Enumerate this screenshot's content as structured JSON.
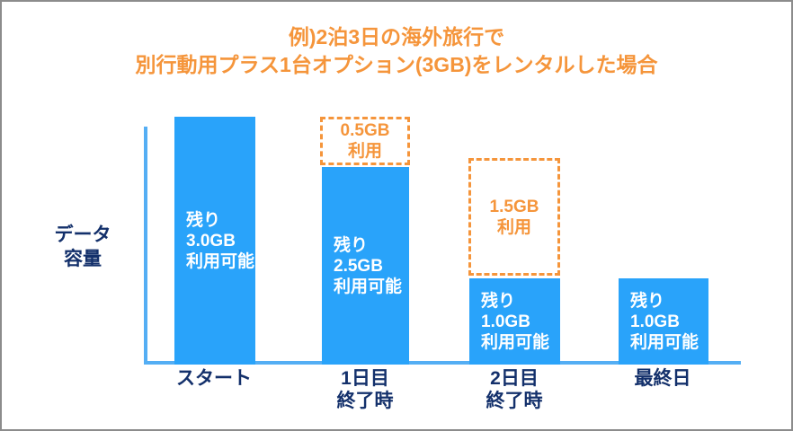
{
  "title": {
    "line1": "例)2泊3日の海外旅行で",
    "line2": "別行動用プラス1台オプション(3GB)をレンタルした場合"
  },
  "y_axis": {
    "line1": "データ",
    "line2": "容量"
  },
  "colors": {
    "bar_blue": "#29A3FA",
    "axis_blue": "#54AEF4",
    "accent_orange": "#F5953B",
    "navy_text": "#13306B",
    "bar_text_white": "#FFFFFF"
  },
  "bars": [
    {
      "axis_label": {
        "line1": "スタート",
        "line2": ""
      },
      "lines": [
        "残り",
        "3.0GB",
        "利用可能"
      ],
      "used": null
    },
    {
      "axis_label": {
        "line1": "1日目",
        "line2": "終了時"
      },
      "lines": [
        "残り",
        "2.5GB",
        "利用可能"
      ],
      "used": {
        "amount": "0.5GB",
        "word": "利用"
      }
    },
    {
      "axis_label": {
        "line1": "2日目",
        "line2": "終了時"
      },
      "lines": [
        "残り",
        "1.0GB",
        "利用可能"
      ],
      "used": {
        "amount": "1.5GB",
        "word": "利用"
      }
    },
    {
      "axis_label": {
        "line1": "最終日",
        "line2": ""
      },
      "lines": [
        "残り",
        "1.0GB",
        "利用可能"
      ],
      "used": null
    }
  ],
  "chart_data": {
    "type": "bar",
    "title": "例)2泊3日の海外旅行で別行動用プラス1台オプション(3GB)をレンタルした場合",
    "ylabel": "データ容量",
    "xlabel": "",
    "categories": [
      "スタート",
      "1日目終了時",
      "2日目終了時",
      "最終日"
    ],
    "series": [
      {
        "name": "残り利用可能 (GB)",
        "values": [
          3.0,
          2.5,
          1.0,
          1.0
        ]
      },
      {
        "name": "利用 (GB)",
        "values": [
          0,
          0.5,
          1.5,
          0
        ]
      }
    ],
    "ylim": [
      0,
      3
    ],
    "grid": false,
    "legend_position": "none",
    "bar_annotations": [
      "残り 3.0GB 利用可能",
      "残り 2.5GB 利用可能",
      "残り 1.0GB 利用可能",
      "残り 1.0GB 利用可能"
    ],
    "used_annotations": [
      null,
      "0.5GB 利用",
      "1.5GB 利用",
      null
    ]
  }
}
